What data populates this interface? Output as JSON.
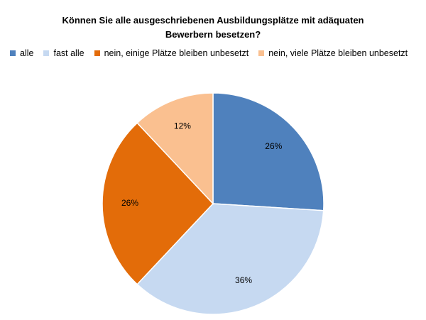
{
  "chart_data": {
    "type": "pie",
    "title": "Können Sie alle ausgeschriebenen Ausbildungsplätze mit adäquaten Bewerbern besetzen?",
    "categories": [
      "alle",
      "fast alle",
      "nein, einige Plätze bleiben unbesetzt",
      "nein, viele Plätze bleiben unbesetzt"
    ],
    "values": [
      26,
      36,
      26,
      12
    ],
    "data_labels": [
      "26%",
      "36%",
      "26%",
      "12%"
    ],
    "colors": [
      "#4f81bd",
      "#c6d9f1",
      "#e36c09",
      "#fac090"
    ],
    "legend_position": "top",
    "start_angle": "12 o'clock",
    "direction": "clockwise"
  }
}
